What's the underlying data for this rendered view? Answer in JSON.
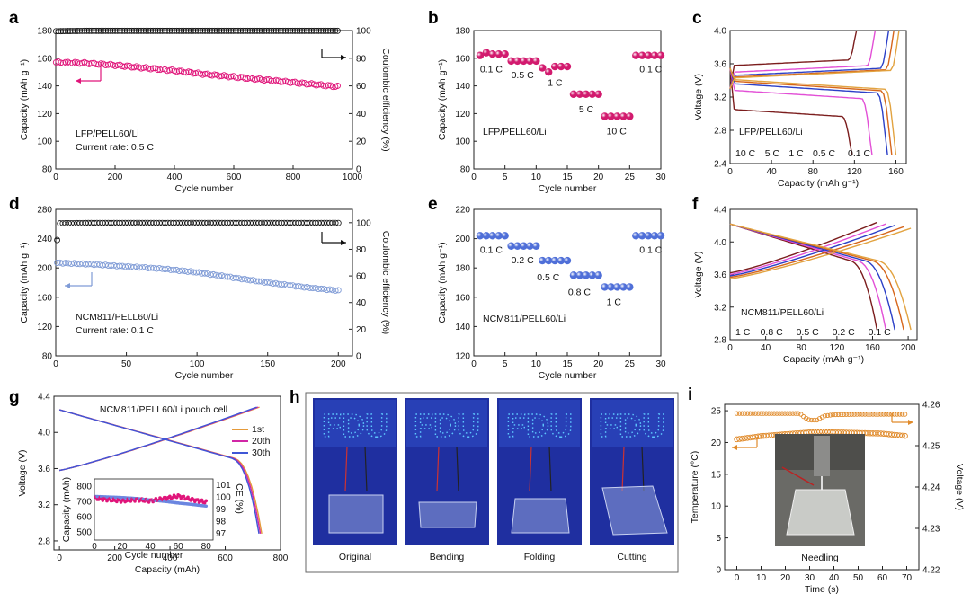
{
  "colors": {
    "pink": "#e0157a",
    "black": "#111111",
    "blue": "#7f9bd6",
    "orange": "#e08a2a",
    "ball_pink": "#d21a6e",
    "ball_blue": "#4f6fd8",
    "photo_bg": "#1f2fa0",
    "led": "#5ec8ff",
    "c_brown": "#7b1d1d",
    "c_magenta": "#e24fd6",
    "c_blue": "#2b3fc7",
    "c_orange": "#d6661b",
    "c_gold": "#e2a340",
    "pouch_1st": "#e59a3a",
    "pouch_20th": "#d126a6",
    "pouch_30th": "#3f56d6"
  },
  "chart_data": [
    {
      "id": "a",
      "panel_label": "a",
      "type": "scatter",
      "xlabel": "Cycle number",
      "ylabel": "Capacity (mAh g⁻¹)",
      "y2label": "Coulombic efficiency (%)",
      "xlim": [
        0,
        1000
      ],
      "ylim": [
        80,
        180
      ],
      "y2lim": [
        0,
        100
      ],
      "xticks": [
        0,
        200,
        400,
        600,
        800,
        1000
      ],
      "yticks": [
        80,
        100,
        120,
        140,
        160,
        180
      ],
      "y2ticks": [
        0,
        20,
        40,
        60,
        80,
        100
      ],
      "annotations": [
        "LFP/PELL60/Li",
        "Current rate: 0.5 C"
      ],
      "series": [
        {
          "name": "Capacity",
          "axis": "left",
          "color": "pink",
          "x": [
            1,
            100,
            200,
            300,
            400,
            500,
            600,
            700,
            800,
            900,
            950
          ],
          "y": [
            157,
            156.5,
            155,
            153,
            151,
            148.5,
            146.5,
            144.5,
            142.5,
            140.5,
            139.5
          ]
        },
        {
          "name": "Coulombic efficiency",
          "axis": "right",
          "color": "black",
          "x": [
            1,
            100,
            200,
            300,
            400,
            500,
            600,
            700,
            800,
            900,
            950
          ],
          "y": [
            99.5,
            99.8,
            99.8,
            99.8,
            99.8,
            99.8,
            99.8,
            99.8,
            99.8,
            99.8,
            99.8
          ]
        }
      ]
    },
    {
      "id": "b",
      "panel_label": "b",
      "type": "scatter",
      "xlabel": "Cycle number",
      "ylabel": "Capacity (mAh g⁻¹)",
      "xlim": [
        0,
        30
      ],
      "ylim": [
        80,
        180
      ],
      "xticks": [
        0,
        5,
        10,
        15,
        20,
        25,
        30
      ],
      "yticks": [
        80,
        100,
        120,
        140,
        160,
        180
      ],
      "annotations": [
        "LFP/PELL60/Li"
      ],
      "color": "ball_pink",
      "groups": [
        {
          "label": "0.1 C",
          "x": [
            1,
            2,
            3,
            4,
            5
          ],
          "y": [
            162,
            164,
            163,
            163,
            163
          ]
        },
        {
          "label": "0.5 C",
          "x": [
            6,
            7,
            8,
            9,
            10
          ],
          "y": [
            158,
            158,
            158,
            158,
            158
          ]
        },
        {
          "label": "1 C",
          "x": [
            11,
            12,
            13,
            14,
            15
          ],
          "y": [
            153,
            150,
            154,
            154,
            154
          ]
        },
        {
          "label": "5 C",
          "x": [
            16,
            17,
            18,
            19,
            20
          ],
          "y": [
            134,
            134,
            134,
            134,
            134
          ]
        },
        {
          "label": "10 C",
          "x": [
            21,
            22,
            23,
            24,
            25
          ],
          "y": [
            118,
            118,
            118,
            118,
            118
          ]
        },
        {
          "label": "0.1 C",
          "x": [
            26,
            27,
            28,
            29,
            30
          ],
          "y": [
            162,
            162,
            162,
            162,
            162
          ]
        }
      ]
    },
    {
      "id": "c",
      "panel_label": "c",
      "type": "line",
      "xlabel": "Capacity (mAh g⁻¹)",
      "ylabel": "Voltage (V)",
      "xlim": [
        0,
        170
      ],
      "ylim": [
        2.4,
        4.0
      ],
      "xticks": [
        0,
        40,
        80,
        120,
        160
      ],
      "yticks": [
        2.4,
        2.8,
        3.2,
        3.6,
        4.0
      ],
      "annotations": [
        "LFP/PELL60/Li"
      ],
      "series": [
        {
          "name": "10 C",
          "color": "c_brown",
          "x_end_charge": 122,
          "x_end_discharge": 118,
          "plateau_charge": 3.58,
          "plateau_discharge": 3.05
        },
        {
          "name": "5 C",
          "color": "c_magenta",
          "x_end_charge": 140,
          "x_end_discharge": 137,
          "plateau_charge": 3.5,
          "plateau_discharge": 3.28
        },
        {
          "name": "1 C",
          "color": "c_blue",
          "x_end_charge": 153,
          "x_end_discharge": 152,
          "plateau_charge": 3.46,
          "plateau_discharge": 3.36
        },
        {
          "name": "0.5 C",
          "color": "c_orange",
          "x_end_charge": 158,
          "x_end_discharge": 156,
          "plateau_charge": 3.44,
          "plateau_discharge": 3.39
        },
        {
          "name": "0.1 C",
          "color": "c_gold",
          "x_end_charge": 163,
          "x_end_discharge": 160,
          "plateau_charge": 3.43,
          "plateau_discharge": 3.41
        }
      ]
    },
    {
      "id": "d",
      "panel_label": "d",
      "type": "scatter",
      "xlabel": "Cycle number",
      "ylabel": "Capacity (mAh g⁻¹)",
      "y2label": "Coulombic efficiency (%)",
      "xlim": [
        0,
        210
      ],
      "ylim": [
        80,
        280
      ],
      "y2lim": [
        0,
        110
      ],
      "xticks": [
        0,
        50,
        100,
        150,
        200
      ],
      "yticks": [
        80,
        120,
        160,
        200,
        240,
        280
      ],
      "y2ticks": [
        0,
        20,
        40,
        60,
        80,
        100
      ],
      "annotations": [
        "NCM811/PELL60/Li",
        "Current rate: 0.1 C"
      ],
      "series": [
        {
          "name": "Capacity",
          "axis": "left",
          "color": "blue",
          "x": [
            1,
            25,
            50,
            75,
            100,
            125,
            150,
            175,
            200
          ],
          "y": [
            207,
            205,
            202,
            199,
            194,
            187,
            180,
            174,
            169
          ]
        },
        {
          "name": "Coulombic efficiency",
          "axis": "right",
          "color": "black",
          "x": [
            1,
            2,
            25,
            50,
            75,
            100,
            125,
            150,
            175,
            200
          ],
          "y": [
            87,
            99.5,
            99.8,
            99.8,
            99.8,
            99.8,
            99.8,
            99.8,
            99.8,
            99.8
          ]
        }
      ]
    },
    {
      "id": "e",
      "panel_label": "e",
      "type": "scatter",
      "xlabel": "Cycle number",
      "ylabel": "Capacity (mAh g⁻¹)",
      "xlim": [
        0,
        30
      ],
      "ylim": [
        120,
        220
      ],
      "xticks": [
        0,
        5,
        10,
        15,
        20,
        25,
        30
      ],
      "yticks": [
        120,
        140,
        160,
        180,
        200,
        220
      ],
      "annotations": [
        "NCM811/PELL60/Li"
      ],
      "color": "ball_blue",
      "groups": [
        {
          "label": "0.1 C",
          "x": [
            1,
            2,
            3,
            4,
            5
          ],
          "y": [
            202,
            202,
            202,
            202,
            202
          ]
        },
        {
          "label": "0.2 C",
          "x": [
            6,
            7,
            8,
            9,
            10
          ],
          "y": [
            195,
            195,
            195,
            195,
            195
          ]
        },
        {
          "label": "0.5 C",
          "x": [
            11,
            12,
            13,
            14,
            15
          ],
          "y": [
            185,
            185,
            185,
            185,
            185
          ]
        },
        {
          "label": "0.8 C",
          "x": [
            16,
            17,
            18,
            19,
            20
          ],
          "y": [
            175,
            175,
            175,
            175,
            175
          ]
        },
        {
          "label": "1 C",
          "x": [
            21,
            22,
            23,
            24,
            25
          ],
          "y": [
            167,
            167,
            167,
            167,
            167
          ]
        },
        {
          "label": "0.1 C",
          "x": [
            26,
            27,
            28,
            29,
            30
          ],
          "y": [
            202,
            202,
            202,
            202,
            202
          ]
        }
      ]
    },
    {
      "id": "f",
      "panel_label": "f",
      "type": "line",
      "xlabel": "Capacity (mAh g⁻¹)",
      "ylabel": "Voltage (V)",
      "xlim": [
        0,
        210
      ],
      "ylim": [
        2.8,
        4.4
      ],
      "xticks": [
        0,
        40,
        80,
        120,
        160,
        200
      ],
      "yticks": [
        2.8,
        3.2,
        3.6,
        4.0,
        4.4
      ],
      "annotations": [
        "NCM811/PELL60/Li"
      ],
      "series": [
        {
          "name": "1 C",
          "color": "c_brown",
          "x_end": 165
        },
        {
          "name": "0.8 C",
          "color": "c_magenta",
          "x_end": 175
        },
        {
          "name": "0.5 C",
          "color": "c_blue",
          "x_end": 185
        },
        {
          "name": "0.2 C",
          "color": "c_orange",
          "x_end": 195
        },
        {
          "name": "0.1 C",
          "color": "c_gold",
          "x_end": 203
        }
      ]
    },
    {
      "id": "g",
      "panel_label": "g",
      "type": "line",
      "title": "NCM811/PELL60/Li pouch cell",
      "xlabel": "Capacity (mAh)",
      "ylabel": "Voltage (V)",
      "xlim": [
        -20,
        800
      ],
      "ylim": [
        2.7,
        4.4
      ],
      "xticks": [
        0,
        200,
        400,
        600,
        800
      ],
      "yticks": [
        2.8,
        3.2,
        3.6,
        4.0,
        4.4
      ],
      "legend": [
        "1st",
        "20th",
        "30th"
      ],
      "series": [
        {
          "name": "1st",
          "color": "pouch_1st",
          "x_end": 732
        },
        {
          "name": "20th",
          "color": "pouch_20th",
          "x_end": 727
        },
        {
          "name": "30th",
          "color": "pouch_30th",
          "x_end": 722
        }
      ],
      "inset": {
        "xlabel": "Cycle number",
        "ylabel": "Capacity (mAh)",
        "y2label": "CE (%)",
        "xlim": [
          0,
          85
        ],
        "ylim": [
          450,
          850
        ],
        "y2lim": [
          96.5,
          101.5
        ],
        "xticks": [
          0,
          20,
          40,
          60,
          80
        ],
        "yticks": [
          500,
          600,
          700,
          800
        ],
        "y2ticks": [
          97,
          98,
          99,
          100,
          101
        ],
        "capacity": {
          "x": [
            1,
            10,
            20,
            30,
            40,
            50,
            60,
            70,
            80
          ],
          "y": [
            735,
            732,
            728,
            722,
            712,
            703,
            692,
            683,
            672
          ]
        },
        "ce": {
          "x": [
            1,
            10,
            20,
            30,
            40,
            50,
            60,
            70,
            80
          ],
          "y": [
            99.9,
            99.8,
            99.7,
            99.8,
            99.7,
            99.9,
            100.1,
            99.8,
            99.6
          ]
        }
      }
    },
    {
      "id": "i",
      "panel_label": "i",
      "type": "scatter",
      "xlabel": "Time (s)",
      "ylabel": "Temperature (°C)",
      "y2label": "Voltage (V)",
      "xlim": [
        -5,
        75
      ],
      "ylim": [
        0,
        26
      ],
      "y2lim": [
        4.22,
        4.26
      ],
      "xticks": [
        0,
        10,
        20,
        30,
        40,
        50,
        60,
        70
      ],
      "yticks": [
        0,
        5,
        10,
        15,
        20,
        25
      ],
      "y2ticks": [
        4.22,
        4.23,
        4.24,
        4.25,
        4.26
      ],
      "photo_caption": "Needling",
      "series": [
        {
          "name": "Temperature",
          "axis": "left",
          "color": "orange",
          "x": [
            0,
            10,
            20,
            27,
            30,
            35,
            40,
            50,
            60,
            70
          ],
          "y": [
            20.5,
            21,
            21.3,
            21.5,
            21.6,
            21.7,
            21.6,
            21.5,
            21.4,
            21.0
          ]
        },
        {
          "name": "Voltage",
          "axis": "right",
          "color": "orange",
          "x": [
            0,
            10,
            20,
            26,
            28,
            30,
            33,
            36,
            40,
            50,
            60,
            70
          ],
          "y": [
            4.2578,
            4.2578,
            4.2578,
            4.2578,
            4.2568,
            4.2562,
            4.2562,
            4.2572,
            4.2575,
            4.2576,
            4.2576,
            4.2576
          ]
        }
      ]
    }
  ],
  "panel_h": {
    "panel_label": "h",
    "led_text": "FDU",
    "captions": [
      "Original",
      "Bending",
      "Folding",
      "Cutting"
    ]
  }
}
